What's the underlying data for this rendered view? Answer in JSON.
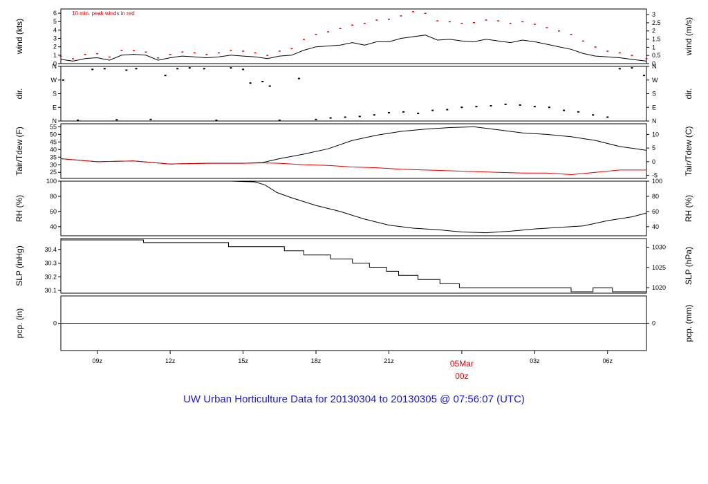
{
  "title": "UW Urban Horticulture Data for 20130304  to  20130305 @ 07:56:07  (UTC)",
  "colors": {
    "title": "#1a1acc",
    "accent_red": "#e00000",
    "line": "#000000",
    "precip": "#0000cc",
    "frame": "#000000"
  },
  "time_axis": {
    "start_hour": 7.5,
    "end_hour": 31.6,
    "tick_hours": [
      9,
      12,
      15,
      18,
      21,
      24,
      27,
      30
    ],
    "tick_labels": [
      "09z",
      "12z",
      "15z",
      "18z",
      "21z",
      "",
      "03z",
      "06z"
    ],
    "date_label": "05Mar",
    "date_sublabel": "00z",
    "date_hour": 24
  },
  "chart_data": [
    {
      "id": "wind",
      "type": "line",
      "left_label": "wind (kts)",
      "right_label": "wind (m/s)",
      "note": "10 min. peak winds in red",
      "ylim": [
        0,
        6.5
      ],
      "left_ticks": [
        0,
        1,
        2,
        3,
        4,
        5,
        6
      ],
      "right_ticks": [
        0,
        0.5,
        1,
        1.5,
        2,
        2.5,
        3
      ],
      "right_tick_labels": [
        "0",
        "0.5",
        "1",
        "1.5",
        "2",
        "2.5",
        "3"
      ],
      "x": [
        7.5,
        8.0,
        8.5,
        9.0,
        9.5,
        10.0,
        10.5,
        11.0,
        11.5,
        12.0,
        12.5,
        13.0,
        13.5,
        14.0,
        14.5,
        15.0,
        15.5,
        16.0,
        16.5,
        17.0,
        17.5,
        18.0,
        18.5,
        19.0,
        19.5,
        20.0,
        20.5,
        21.0,
        21.5,
        22.0,
        22.5,
        23.0,
        23.5,
        24.0,
        24.5,
        25.0,
        25.5,
        26.0,
        26.5,
        27.0,
        27.5,
        28.0,
        28.5,
        29.0,
        29.5,
        30.0,
        30.5,
        31.0,
        31.6
      ],
      "series": [
        {
          "values": [
            0.5,
            0.3,
            0.6,
            0.7,
            0.4,
            1.0,
            1.1,
            1.0,
            0.4,
            0.7,
            0.9,
            0.8,
            0.7,
            0.8,
            1.0,
            0.9,
            0.8,
            0.6,
            0.9,
            1.0,
            1.6,
            2.0,
            2.1,
            2.2,
            2.5,
            2.2,
            2.6,
            2.6,
            3.0,
            3.2,
            3.4,
            2.8,
            2.9,
            2.7,
            2.6,
            2.9,
            2.7,
            2.5,
            2.8,
            2.6,
            2.3,
            2.0,
            1.7,
            1.2,
            0.9,
            0.8,
            0.7,
            0.5,
            0.3
          ],
          "color": "#000000"
        },
        {
          "values": [
            0.9,
            0.6,
            1.1,
            1.2,
            0.8,
            1.6,
            1.6,
            1.4,
            0.7,
            1.1,
            1.4,
            1.3,
            1.1,
            1.3,
            1.6,
            1.5,
            1.3,
            1.0,
            1.5,
            1.8,
            2.9,
            3.5,
            3.8,
            4.2,
            4.6,
            4.8,
            5.2,
            5.3,
            5.7,
            6.2,
            6.0,
            5.1,
            5.0,
            4.8,
            4.9,
            5.2,
            5.1,
            4.8,
            5.0,
            4.7,
            4.3,
            3.9,
            3.5,
            2.7,
            2.0,
            1.5,
            1.3,
            1.0,
            0.6
          ],
          "color": "#e00000"
        }
      ]
    },
    {
      "id": "direction",
      "type": "scatter",
      "left_label": "dir.",
      "right_label": "dir.",
      "ylim": [
        0,
        360
      ],
      "left_ticks": [
        0,
        90,
        180,
        270,
        360
      ],
      "left_tick_labels": [
        "N",
        "E",
        "S",
        "W",
        "N"
      ],
      "right_ticks": [
        0,
        90,
        180,
        270,
        360
      ],
      "right_tick_labels": [
        "N",
        "E",
        "S",
        "W",
        "N"
      ],
      "x": [
        7.6,
        8.2,
        8.8,
        9.3,
        9.8,
        10.2,
        10.6,
        11.2,
        11.8,
        12.3,
        12.8,
        13.4,
        13.9,
        14.5,
        15.0,
        15.3,
        15.8,
        16.1,
        16.5,
        17.3,
        18.0,
        18.6,
        19.2,
        19.8,
        20.4,
        21.0,
        21.6,
        22.2,
        22.8,
        23.4,
        24.0,
        24.6,
        25.2,
        25.8,
        26.4,
        27.0,
        27.6,
        28.2,
        28.8,
        29.4,
        30.0,
        30.5,
        31.0,
        31.5
      ],
      "series": [
        {
          "values": [
            270,
            5,
            340,
            345,
            8,
            335,
            345,
            10,
            300,
            345,
            350,
            345,
            5,
            350,
            340,
            250,
            260,
            230,
            5,
            280,
            10,
            20,
            25,
            30,
            40,
            55,
            60,
            50,
            70,
            75,
            90,
            95,
            100,
            110,
            105,
            95,
            90,
            70,
            60,
            40,
            25,
            345,
            350,
            300
          ],
          "color": "#000000"
        }
      ]
    },
    {
      "id": "temperature",
      "type": "line",
      "left_label": "Tair/Tdew (F)",
      "right_label": "Tair/Tdew (C)",
      "ylim": [
        21,
        57
      ],
      "left_ticks": [
        25,
        30,
        35,
        40,
        45,
        50,
        55
      ],
      "right_ticks": [
        -5,
        0,
        5,
        10
      ],
      "x": [
        7.5,
        9.0,
        10.5,
        12.0,
        13.5,
        15.0,
        15.8,
        16.5,
        17.5,
        18.5,
        19.5,
        20.5,
        21.5,
        22.5,
        23.5,
        24.5,
        25.5,
        26.5,
        27.5,
        28.5,
        29.5,
        30.5,
        31.6
      ],
      "series": [
        {
          "values": [
            34,
            32,
            32.5,
            30.5,
            31,
            31,
            31.5,
            34,
            37,
            40.5,
            46,
            49.5,
            52,
            53.5,
            54.5,
            55,
            53,
            51,
            50,
            48.5,
            46,
            42,
            39.5
          ],
          "color": "#000000"
        },
        {
          "values": [
            34,
            32,
            32.5,
            30.5,
            31,
            31,
            31.2,
            31,
            30,
            29.5,
            28.5,
            28,
            27,
            26.5,
            26,
            25.5,
            25,
            24.5,
            24.5,
            23.5,
            25,
            26.5,
            26.5
          ],
          "color": "#e00000"
        }
      ]
    },
    {
      "id": "humidity",
      "type": "line",
      "left_label": "RH (%)",
      "right_label": "RH (%)",
      "ylim": [
        28,
        100
      ],
      "left_ticks": [
        40,
        60,
        80,
        100
      ],
      "right_ticks": [
        40,
        60,
        80,
        100
      ],
      "x": [
        7.5,
        9.0,
        11.0,
        13.0,
        14.5,
        15.5,
        15.9,
        16.4,
        17.0,
        18.0,
        19.0,
        20.0,
        21.0,
        22.0,
        23.0,
        24.0,
        25.0,
        26.0,
        27.0,
        28.0,
        29.0,
        30.0,
        31.0,
        31.6
      ],
      "series": [
        {
          "values": [
            100,
            100,
            100,
            100,
            100,
            99,
            95,
            85,
            78,
            68,
            60,
            50,
            42,
            38,
            36,
            33,
            32,
            34,
            37,
            39,
            41,
            48,
            53,
            58
          ],
          "color": "#000000"
        }
      ]
    },
    {
      "id": "pressure",
      "type": "line",
      "left_label": "SLP (inHg)",
      "right_label": "SLP (hPa)",
      "ylim": [
        30.08,
        30.48
      ],
      "left_ticks": [
        30.1,
        30.2,
        30.3,
        30.4
      ],
      "right_ticks": [
        1020,
        1025,
        1030
      ],
      "x": [
        7.5,
        10.9,
        10.9,
        14.4,
        14.4,
        16.7,
        16.7,
        17.5,
        17.5,
        18.6,
        18.6,
        19.5,
        19.5,
        20.2,
        20.2,
        20.9,
        20.9,
        21.4,
        21.4,
        22.2,
        22.2,
        23.1,
        23.1,
        23.9,
        23.9,
        28.5,
        28.5,
        29.4,
        29.4,
        30.2,
        30.2,
        31.6
      ],
      "series": [
        {
          "values": [
            30.47,
            30.47,
            30.45,
            30.45,
            30.42,
            30.42,
            30.39,
            30.39,
            30.36,
            30.36,
            30.33,
            30.33,
            30.3,
            30.3,
            30.27,
            30.27,
            30.24,
            30.24,
            30.21,
            30.21,
            30.18,
            30.18,
            30.15,
            30.15,
            30.12,
            30.12,
            30.09,
            30.09,
            30.12,
            30.12,
            30.09,
            30.09
          ],
          "color": "#000000"
        }
      ]
    },
    {
      "id": "precip",
      "type": "line",
      "left_label": "pcp. (in)",
      "right_label": "pcp. (mm)",
      "ylim": [
        -1,
        1
      ],
      "left_ticks": [
        0
      ],
      "right_ticks": [
        0
      ],
      "x": [
        7.5,
        31.6
      ],
      "series": [
        {
          "values": [
            0,
            0
          ],
          "color": "#0000cc"
        }
      ]
    }
  ]
}
